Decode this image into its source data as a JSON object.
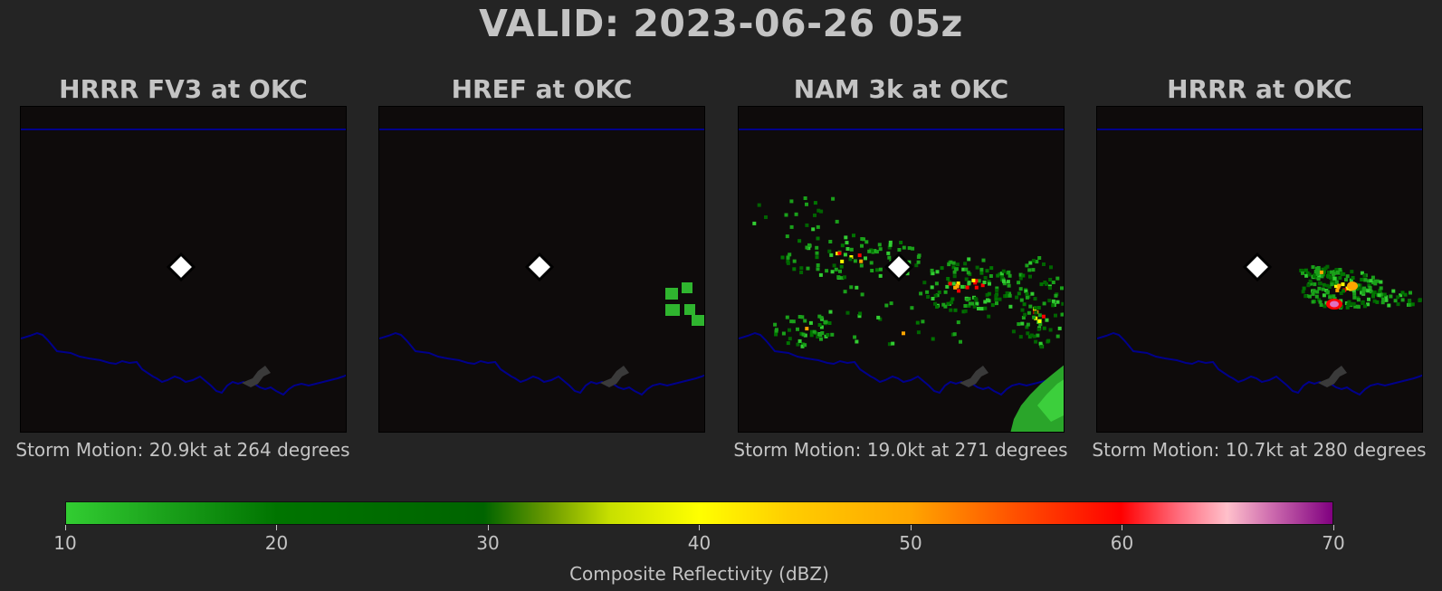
{
  "title": "VALID: 2023-06-26 05z",
  "panels": [
    {
      "title": "HRRR FV3 at OKC",
      "storm_motion": "Storm Motion: 20.9kt at 264 degrees"
    },
    {
      "title": "HREF at OKC",
      "storm_motion": ""
    },
    {
      "title": "NAM 3k at OKC",
      "storm_motion": "Storm Motion: 19.0kt at 271 degrees"
    },
    {
      "title": "HRRR at OKC",
      "storm_motion": "Storm Motion: 10.7kt at 280 degrees"
    }
  ],
  "colorbar": {
    "label": "Composite Reflectivity (dBZ)",
    "ticks": [
      "10",
      "20",
      "30",
      "40",
      "50",
      "60",
      "70"
    ],
    "range": [
      10,
      70
    ]
  },
  "colors": {
    "background": "#242424",
    "panel_bg": "#0e0b0b",
    "boundary": "#00008b",
    "marker": "#ffffff"
  },
  "chart_data": {
    "type": "heatmap",
    "title": "VALID: 2023-06-26 05z",
    "colorbar_label": "Composite Reflectivity (dBZ)",
    "clim": [
      10,
      70
    ],
    "legend": "bottom",
    "subplots": [
      {
        "title": "HRRR FV3 at OKC",
        "reflectivity_echoes": "none"
      },
      {
        "title": "HREF at OKC",
        "reflectivity_echoes": "scattered 10-20 dBZ cells at east edge"
      },
      {
        "title": "NAM 3k at OKC",
        "reflectivity_echoes": "scattered 10-55 dBZ cells north and east, 10-20 dBZ area southeast corner"
      },
      {
        "title": "HRRR at OKC",
        "reflectivity_echoes": "cluster 10-60 dBZ east of site"
      }
    ]
  }
}
